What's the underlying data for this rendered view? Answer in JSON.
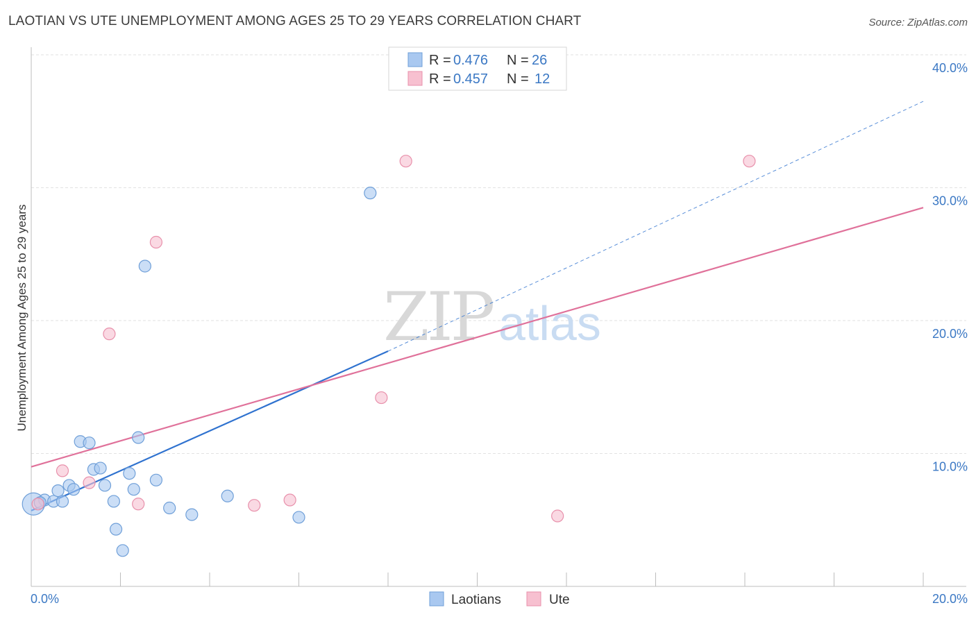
{
  "title": "LAOTIAN VS UTE UNEMPLOYMENT AMONG AGES 25 TO 29 YEARS CORRELATION CHART",
  "source": "Source: ZipAtlas.com",
  "watermark": {
    "zip": "ZIP",
    "atlas": "atlas"
  },
  "colors": {
    "laotians_fill": "#a9c8f0",
    "laotians_stroke": "#6f9fd8",
    "laotians_line": "#2f72cf",
    "ute_fill": "#f7c0d0",
    "ute_stroke": "#e890ab",
    "ute_line": "#e0719a",
    "axis_text": "#3b78c4",
    "grid": "#e2e2e2"
  },
  "legend": {
    "rows": [
      {
        "r_label": "R = ",
        "r_value": "0.476",
        "n_label": "N = ",
        "n_value": "26"
      },
      {
        "r_label": "R = ",
        "r_value": "0.457",
        "n_label": "N = ",
        "n_value": "12"
      }
    ]
  },
  "chart_data": {
    "type": "scatter",
    "title": "LAOTIAN VS UTE UNEMPLOYMENT AMONG AGES 25 TO 29 YEARS CORRELATION CHART",
    "xlabel": "",
    "ylabel": "Unemployment Among Ages 25 to 29 years",
    "xlim": [
      0,
      20
    ],
    "ylim": [
      0,
      40
    ],
    "x_ticks": [
      0,
      2,
      4,
      6,
      8,
      10,
      12,
      14,
      16,
      18,
      20
    ],
    "x_tick_labels": {
      "first": "0.0%",
      "last": "20.0%"
    },
    "y_ticks": [
      10,
      20,
      30,
      40
    ],
    "y_tick_labels": [
      "10.0%",
      "20.0%",
      "30.0%",
      "40.0%"
    ],
    "series": [
      {
        "name": "Laotians",
        "r": 0.476,
        "n": 26,
        "points": [
          [
            0.05,
            6.2,
            "large"
          ],
          [
            0.3,
            6.5
          ],
          [
            0.5,
            6.4
          ],
          [
            0.7,
            6.4
          ],
          [
            0.6,
            7.2
          ],
          [
            0.85,
            7.6
          ],
          [
            0.95,
            7.3
          ],
          [
            1.1,
            10.9
          ],
          [
            1.3,
            10.8
          ],
          [
            1.4,
            8.8
          ],
          [
            1.55,
            8.9
          ],
          [
            1.65,
            7.6
          ],
          [
            1.85,
            6.4
          ],
          [
            1.9,
            4.3
          ],
          [
            2.05,
            2.7
          ],
          [
            2.2,
            8.5
          ],
          [
            2.3,
            7.3
          ],
          [
            2.4,
            11.2
          ],
          [
            2.55,
            24.1
          ],
          [
            2.8,
            8.0
          ],
          [
            3.1,
            5.9
          ],
          [
            3.6,
            5.4
          ],
          [
            4.4,
            6.8
          ],
          [
            6.0,
            5.2
          ],
          [
            7.6,
            29.6
          ],
          [
            0.2,
            6.3
          ]
        ],
        "trend": {
          "x0": 0,
          "y0": 5.7,
          "x1": 8.0,
          "y1": 17.7,
          "dash_to_x": 20,
          "dash_to_y": 36.5
        }
      },
      {
        "name": "Ute",
        "r": 0.457,
        "n": 12,
        "points": [
          [
            0.15,
            6.2
          ],
          [
            0.7,
            8.7
          ],
          [
            1.3,
            7.8
          ],
          [
            1.75,
            19.0
          ],
          [
            2.4,
            6.2
          ],
          [
            2.8,
            25.9
          ],
          [
            5.0,
            6.1
          ],
          [
            5.8,
            6.5
          ],
          [
            7.85,
            14.2
          ],
          [
            8.4,
            32.0
          ],
          [
            11.8,
            5.3
          ],
          [
            16.1,
            32.0
          ]
        ],
        "trend": {
          "x0": 0,
          "y0": 9.0,
          "x1": 20,
          "y1": 28.5
        }
      }
    ],
    "legend_placement": "top-center",
    "grid": true
  }
}
